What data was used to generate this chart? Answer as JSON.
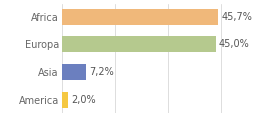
{
  "categories": [
    "America",
    "Asia",
    "Europa",
    "Africa"
  ],
  "values": [
    2.0,
    7.2,
    45.0,
    45.7
  ],
  "labels": [
    "2,0%",
    "7,2%",
    "45,0%",
    "45,7%"
  ],
  "colors": [
    "#f5c842",
    "#6b7fbf",
    "#b5c98e",
    "#f0b87a"
  ],
  "xlim": [
    0,
    62
  ],
  "background_color": "#ffffff",
  "bar_height": 0.58,
  "label_fontsize": 7.0,
  "tick_fontsize": 7.0,
  "gridline_color": "#d0d0d0",
  "gridline_positions": [
    0,
    15.5,
    31.0,
    46.5,
    62.0
  ]
}
